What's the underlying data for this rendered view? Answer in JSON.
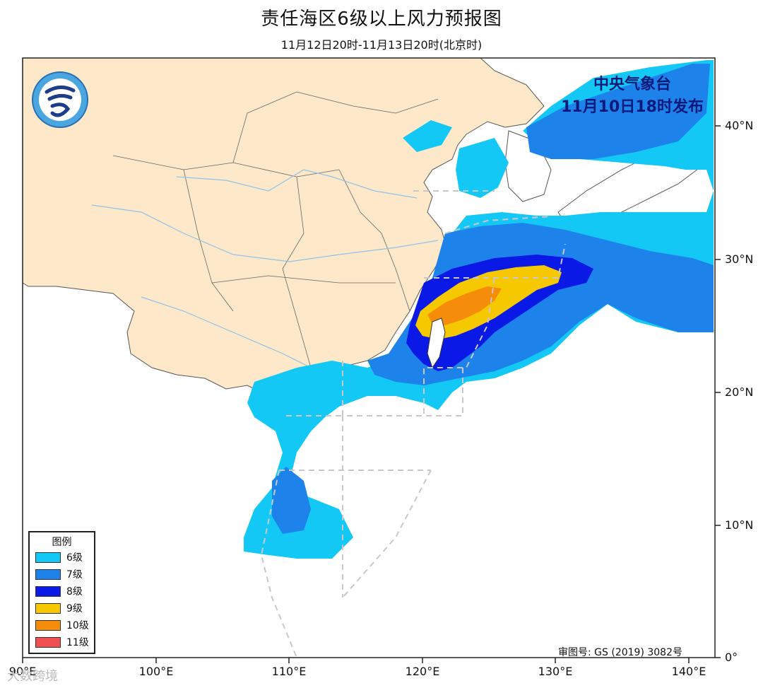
{
  "title": "责任海区6级以上风力预报图",
  "subtitle": "11月12日20时-11月13日20时(北京时)",
  "issuer": {
    "line1": "中央气象台",
    "line2": "11月10日18时发布"
  },
  "approval_number": "审图号: GS (2019) 3082号",
  "watermark": "大数跨境",
  "axes": {
    "lat_ticks": [
      "40°N",
      "30°N",
      "20°N",
      "10°N",
      "0°"
    ],
    "lon_ticks": [
      "90°E",
      "100°E",
      "110°E",
      "120°E",
      "130°E",
      "140°E"
    ]
  },
  "legend": {
    "title": "图例",
    "items": [
      {
        "label": "6级",
        "color": "#14c8f5"
      },
      {
        "label": "7级",
        "color": "#1e82eb"
      },
      {
        "label": "8级",
        "color": "#0a19e6"
      },
      {
        "label": "9级",
        "color": "#f5c800"
      },
      {
        "label": "10级",
        "color": "#f58c0a"
      },
      {
        "label": "11级",
        "color": "#f05050"
      }
    ]
  },
  "colors": {
    "land_china": "#fde8c9",
    "sea": "#ffffff",
    "border": "#555555",
    "dashed": "#c8c8c8"
  }
}
